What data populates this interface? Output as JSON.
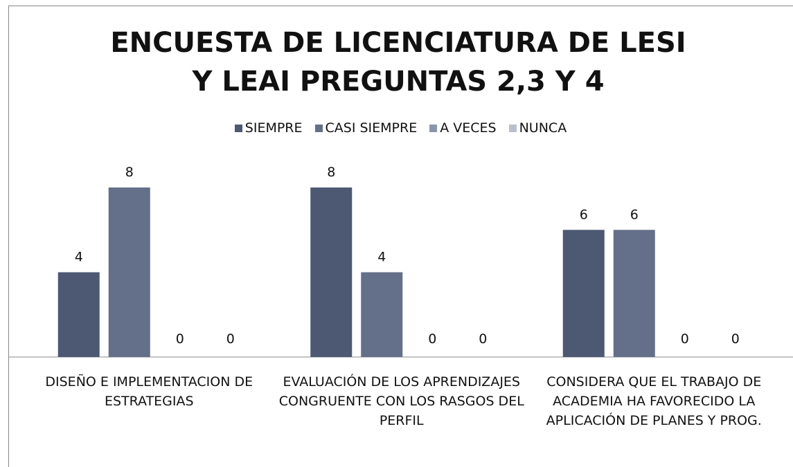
{
  "chart_data": {
    "type": "bar",
    "title": "ENCUESTA DE LICENCIATURA DE LESI Y LEAI  PREGUNTAS 2,3 Y 4",
    "categories": [
      "DISEÑO E IMPLEMENTACION DE ESTRATEGIAS",
      "EVALUACIÓN DE LOS APRENDIZAJES CONGRUENTE CON LOS RASGOS DEL PERFIL",
      "CONSIDERA QUE EL TRABAJO DE ACADEMIA HA FAVORECIDO LA APLICACIÓN DE PLANES Y PROG."
    ],
    "series": [
      {
        "name": "SIEMPRE",
        "color": "#4d5873",
        "values": [
          4,
          8,
          6
        ]
      },
      {
        "name": "CASI SIEMPRE",
        "color": "#646f89",
        "values": [
          8,
          4,
          6
        ]
      },
      {
        "name": "A VECES",
        "color": "#8a95a9",
        "values": [
          0,
          0,
          0
        ]
      },
      {
        "name": "NUNCA",
        "color": "#b9c0cc",
        "values": [
          0,
          0,
          0
        ]
      }
    ],
    "legend": "top"
  }
}
